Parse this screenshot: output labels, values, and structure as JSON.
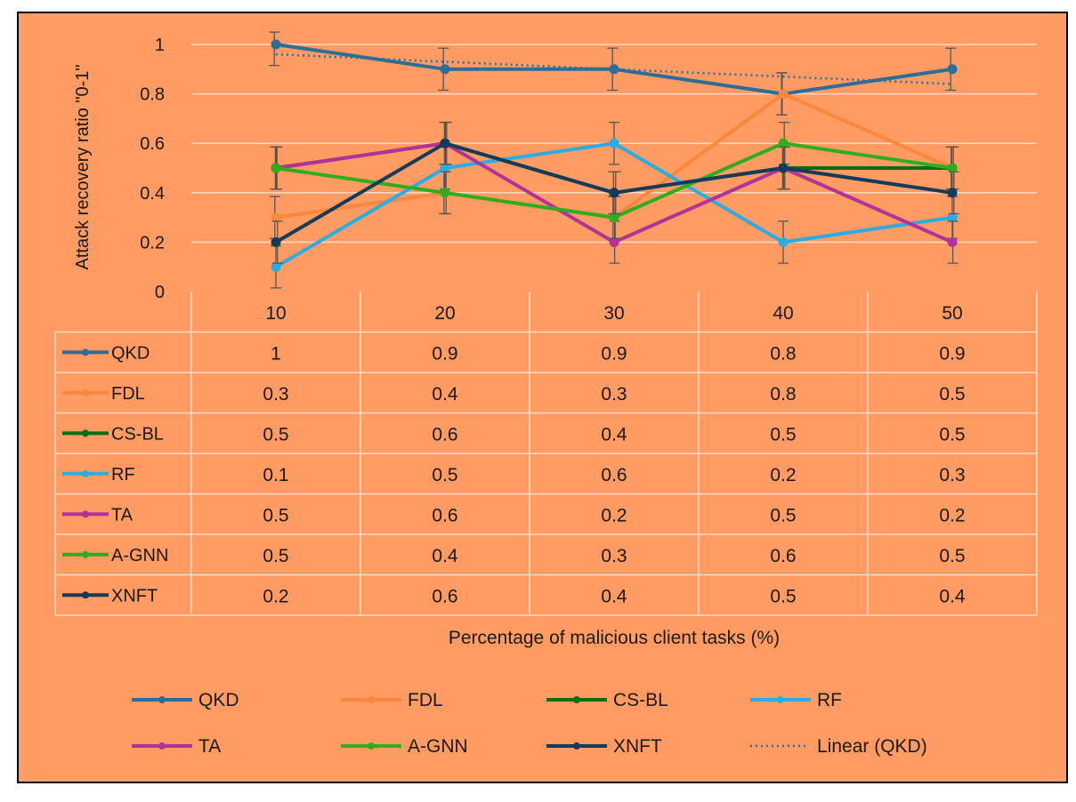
{
  "chart_data": {
    "type": "line",
    "title": "",
    "xlabel": "Percentage of malicious client tasks (%)",
    "ylabel": "Attack recovery ratio  \"0-1\"",
    "categories": [
      "10",
      "20",
      "30",
      "40",
      "50"
    ],
    "ylim": [
      0,
      1
    ],
    "y_ticks": [
      "0",
      "0.2",
      "0.4",
      "0.6",
      "0.8",
      "1"
    ],
    "grid": true,
    "error_bars": true,
    "data_table": true,
    "legend_position": "bottom",
    "background_color": "#FF9B63",
    "series": [
      {
        "name": "QKD",
        "values": [
          1,
          0.9,
          0.9,
          0.8,
          0.9
        ],
        "color": "#2E6E96"
      },
      {
        "name": "FDL",
        "values": [
          0.3,
          0.4,
          0.3,
          0.8,
          0.5
        ],
        "color": "#F9883C"
      },
      {
        "name": "CS-BL",
        "values": [
          0.5,
          0.6,
          0.4,
          0.5,
          0.5
        ],
        "color": "#0A6E17"
      },
      {
        "name": "RF",
        "values": [
          0.1,
          0.5,
          0.6,
          0.2,
          0.3
        ],
        "color": "#2BADE3"
      },
      {
        "name": "TA",
        "values": [
          0.5,
          0.6,
          0.2,
          0.5,
          0.2
        ],
        "color": "#B2329A"
      },
      {
        "name": "A-GNN",
        "values": [
          0.5,
          0.4,
          0.3,
          0.6,
          0.5
        ],
        "color": "#2EAD1E"
      },
      {
        "name": "XNFT",
        "values": [
          0.2,
          0.6,
          0.4,
          0.5,
          0.4
        ],
        "color": "#143C5A"
      }
    ],
    "table_values": [
      [
        "1",
        "0.9",
        "0.9",
        "0.8",
        "0.9"
      ],
      [
        "0.3",
        "0.4",
        "0.3",
        "0.8",
        "0.5"
      ],
      [
        "0.5",
        "0.6",
        "0.4",
        "0.5",
        "0.5"
      ],
      [
        "0.1",
        "0.5",
        "0.6",
        "0.2",
        "0.3"
      ],
      [
        "0.5",
        "0.6",
        "0.2",
        "0.5",
        "0.2"
      ],
      [
        "0.5",
        "0.4",
        "0.3",
        "0.6",
        "0.5"
      ],
      [
        "0.2",
        "0.6",
        "0.4",
        "0.5",
        "0.4"
      ]
    ],
    "trendline": {
      "name": "Linear (QKD)",
      "series": "QKD",
      "values": [
        0.96,
        0.93,
        0.9,
        0.87,
        0.84
      ],
      "style": "dotted"
    },
    "legend": [
      "QKD",
      "FDL",
      "CS-BL",
      "RF",
      "TA",
      "A-GNN",
      "XNFT",
      "Linear (QKD)"
    ]
  }
}
